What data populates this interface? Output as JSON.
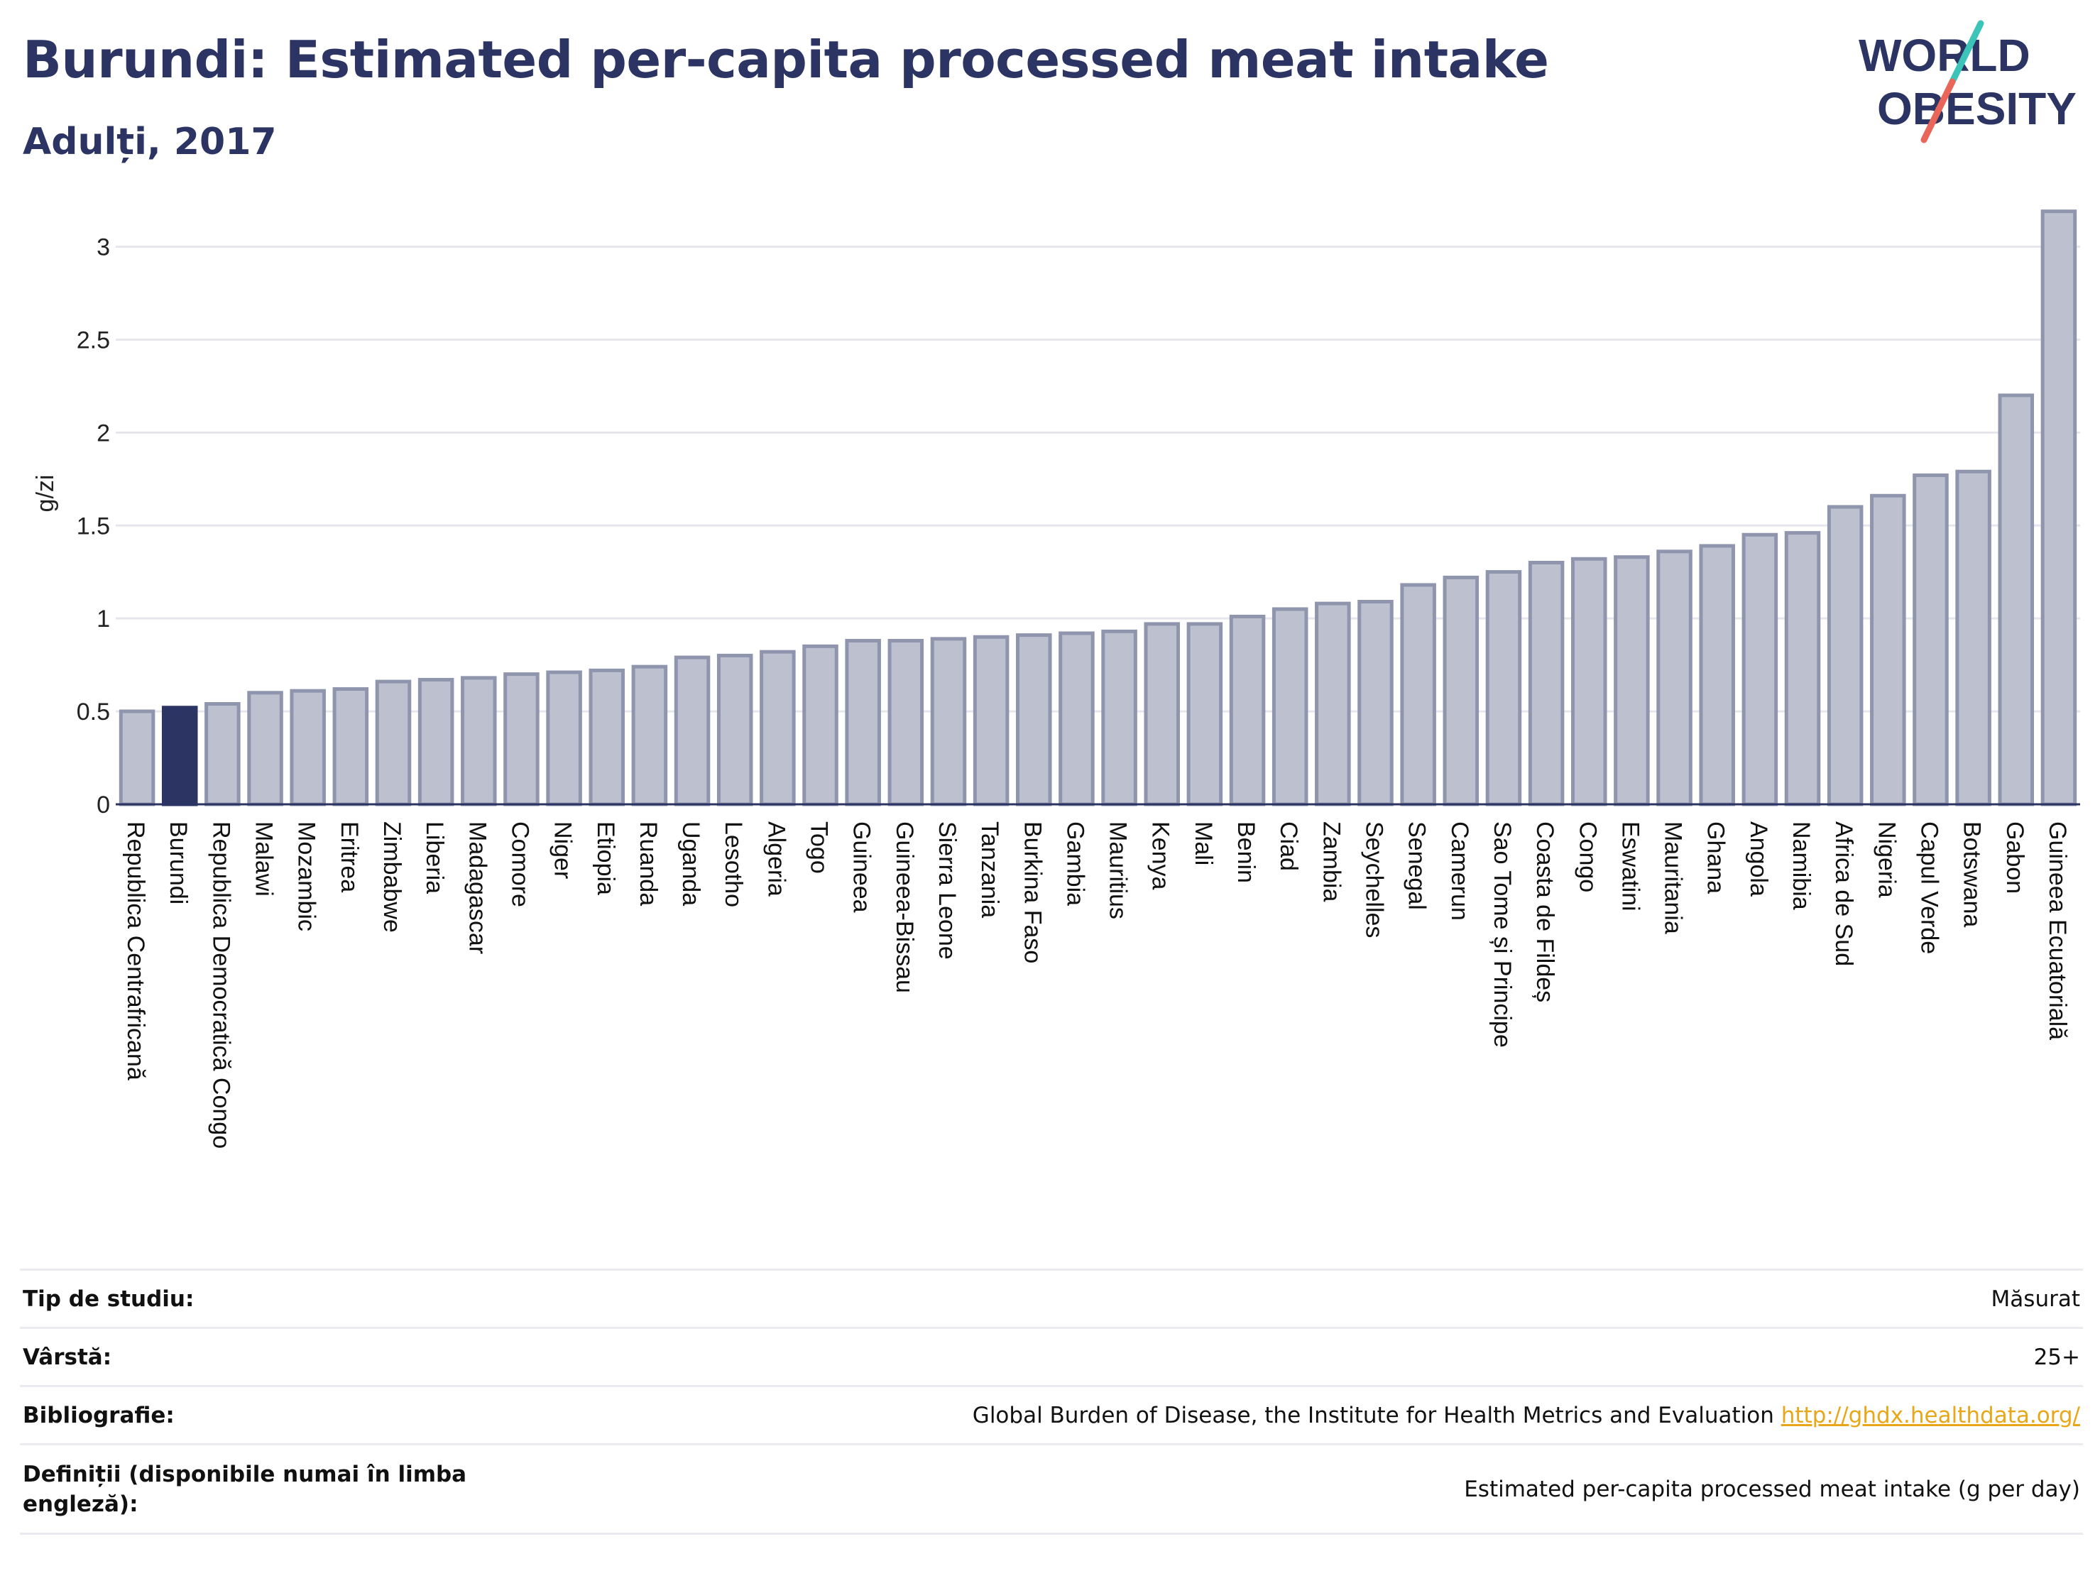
{
  "header": {
    "title": "Burundi: Estimated per-capita processed meat intake",
    "subtitle": "Adulți, 2017"
  },
  "logo": {
    "text_line1": "WORLD",
    "text_line2": "OBESITY",
    "icon": "world-obesity-logo"
  },
  "colors": {
    "bar": "#bcc0cf",
    "bar_border": "#8f95ad",
    "highlight": "#2b3462",
    "title": "#2b3462",
    "grid": "#e6e6ec",
    "link": "#e8a718"
  },
  "chart_data": {
    "type": "bar",
    "title": "",
    "ylabel": "g/zi",
    "xlabel": "",
    "ylim": [
      0,
      3.3
    ],
    "yticks": [
      0,
      0.5,
      1,
      1.5,
      2,
      2.5,
      3
    ],
    "ytick_labels": [
      "0",
      "0.5",
      "1",
      "1.5",
      "2",
      "2.5",
      "3"
    ],
    "highlight": "Burundi",
    "grid": true,
    "categories": [
      "Republica Centrafricană",
      "Burundi",
      "Republica Democratică Congo",
      "Malawi",
      "Mozambic",
      "Eritrea",
      "Zimbabwe",
      "Liberia",
      "Madagascar",
      "Comore",
      "Niger",
      "Etiopia",
      "Ruanda",
      "Uganda",
      "Lesotho",
      "Algeria",
      "Togo",
      "Guineea",
      "Guineea-Bissau",
      "Sierra Leone",
      "Tanzania",
      "Burkina Faso",
      "Gambia",
      "Mauritius",
      "Kenya",
      "Mali",
      "Benin",
      "Ciad",
      "Zambia",
      "Seychelles",
      "Senegal",
      "Camerun",
      "Sao Tome și Principe",
      "Coasta de Fildeș",
      "Congo",
      "Eswatini",
      "Mauritania",
      "Ghana",
      "Angola",
      "Namibia",
      "Africa de Sud",
      "Nigeria",
      "Capul Verde",
      "Botswana",
      "Gabon",
      "Guineea Ecuatorială"
    ],
    "values": [
      0.51,
      0.53,
      0.55,
      0.61,
      0.62,
      0.63,
      0.67,
      0.68,
      0.69,
      0.71,
      0.72,
      0.73,
      0.75,
      0.8,
      0.81,
      0.83,
      0.86,
      0.89,
      0.89,
      0.9,
      0.91,
      0.92,
      0.93,
      0.94,
      0.98,
      0.98,
      1.02,
      1.06,
      1.09,
      1.1,
      1.19,
      1.23,
      1.26,
      1.31,
      1.33,
      1.34,
      1.37,
      1.4,
      1.46,
      1.47,
      1.61,
      1.67,
      1.78,
      1.8,
      2.21,
      3.2
    ]
  },
  "info": [
    {
      "key": "Tip de studiu:",
      "value": "Măsurat"
    },
    {
      "key": "Vârstă:",
      "value": "25+"
    },
    {
      "key": "Bibliografie:",
      "value": "Global Burden of Disease, the Institute for Health Metrics and Evaluation",
      "link": "http://ghdx.healthdata.org/"
    },
    {
      "key": "Definiții (disponibile numai în limba engleză):",
      "value": "Estimated per-capita processed meat intake (g per day)"
    }
  ]
}
